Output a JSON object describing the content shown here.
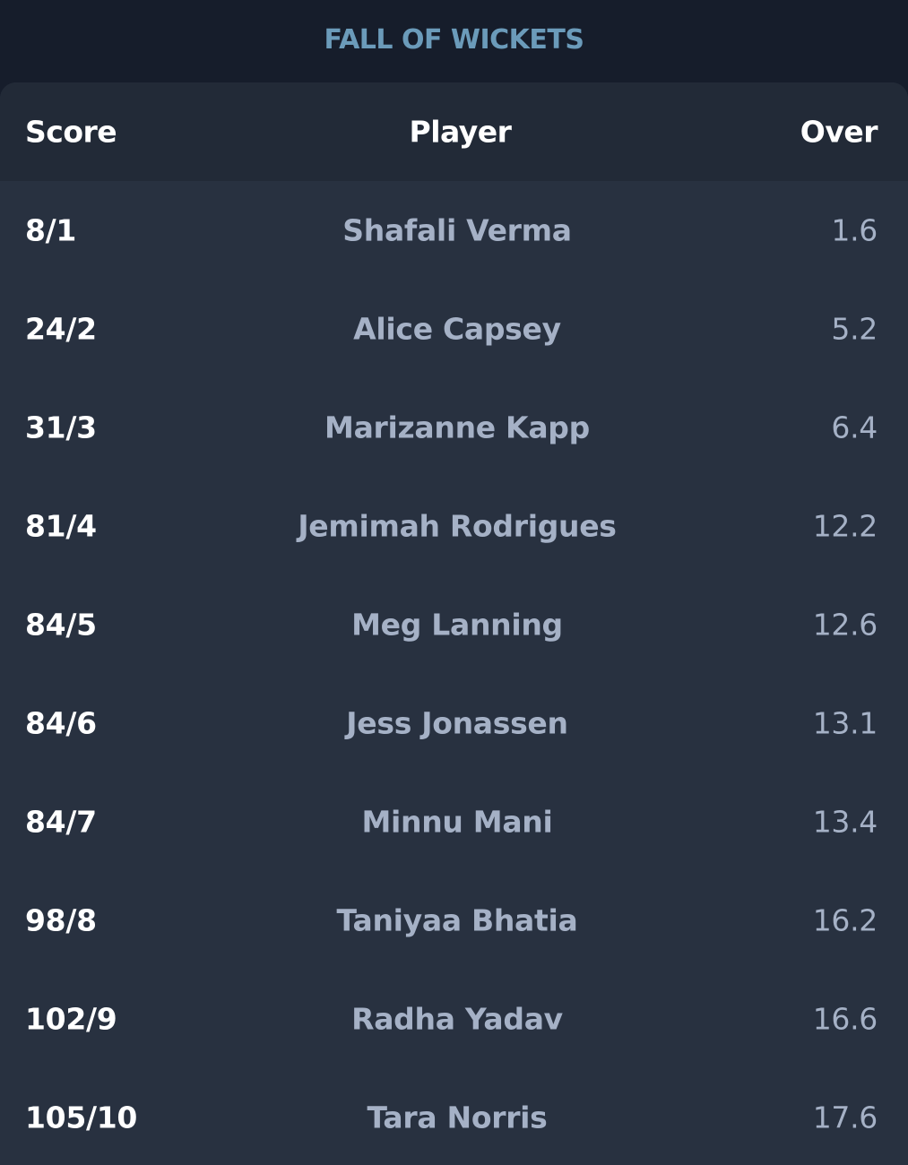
{
  "header": {
    "title": "FALL OF WICKETS"
  },
  "table": {
    "columns": {
      "score": "Score",
      "player": "Player",
      "over": "Over"
    },
    "rows": [
      {
        "score": "8/1",
        "player": "Shafali Verma",
        "over": "1.6"
      },
      {
        "score": "24/2",
        "player": "Alice Capsey",
        "over": "5.2"
      },
      {
        "score": "31/3",
        "player": "Marizanne Kapp",
        "over": "6.4"
      },
      {
        "score": "81/4",
        "player": "Jemimah Rodrigues",
        "over": "12.2"
      },
      {
        "score": "84/5",
        "player": "Meg Lanning",
        "over": "12.6"
      },
      {
        "score": "84/6",
        "player": "Jess Jonassen",
        "over": "13.1"
      },
      {
        "score": "84/7",
        "player": "Minnu Mani",
        "over": "13.4"
      },
      {
        "score": "98/8",
        "player": "Taniyaa Bhatia",
        "over": "16.2"
      },
      {
        "score": "102/9",
        "player": "Radha Yadav",
        "over": "16.6"
      },
      {
        "score": "105/10",
        "player": "Tara Norris",
        "over": "17.6"
      }
    ]
  },
  "colors": {
    "page_background": "#161d2b",
    "card_background": "#283140",
    "header_row_background": "#222a37",
    "title": "#6b9bba",
    "score_text": "#ffffff",
    "muted_text": "#a5b1c6"
  }
}
